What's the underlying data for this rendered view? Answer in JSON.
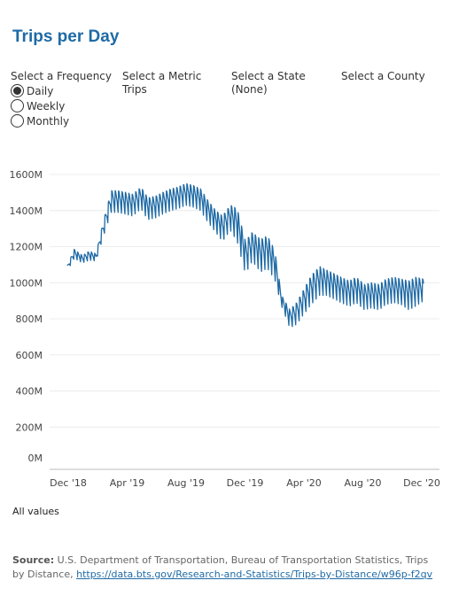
{
  "title": "Trips per Day",
  "filters": {
    "frequency": {
      "label": "Select a Frequency",
      "options": [
        "Daily",
        "Weekly",
        "Monthly"
      ],
      "selected": "Daily"
    },
    "metric": {
      "label": "Select a Metric",
      "value": "Trips"
    },
    "state": {
      "label": "Select a State",
      "value": "(None)"
    },
    "county": {
      "label": "Select a County",
      "value": ""
    }
  },
  "chart_data": {
    "type": "line",
    "title": "",
    "xlabel": "",
    "ylabel": "",
    "grid": true,
    "ylim": [
      0,
      1600
    ],
    "y_ticks": [
      "0M",
      "200M",
      "400M",
      "600M",
      "800M",
      "1000M",
      "1200M",
      "1400M",
      "1600M"
    ],
    "x_ticks": [
      "Dec '18",
      "Apr '19",
      "Aug '19",
      "Dec '19",
      "Apr '20",
      "Aug '20",
      "Dec '20"
    ],
    "x_range": [
      "2019-01-01",
      "2020-12-31"
    ],
    "color": "#1f6aa5",
    "series": [
      {
        "unit": "millions of trips",
        "x": [
          "2019-01-01",
          "2019-01-15",
          "2019-02-01",
          "2019-02-15",
          "2019-03-01",
          "2019-03-15",
          "2019-04-01",
          "2019-04-15",
          "2019-05-01",
          "2019-05-15",
          "2019-06-01",
          "2019-06-15",
          "2019-07-01",
          "2019-07-15",
          "2019-08-01",
          "2019-08-15",
          "2019-09-01",
          "2019-09-15",
          "2019-10-01",
          "2019-10-15",
          "2019-11-01",
          "2019-11-15",
          "2019-12-01",
          "2019-12-15",
          "2020-01-01",
          "2020-01-15",
          "2020-02-01",
          "2020-02-15",
          "2020-03-01",
          "2020-03-15",
          "2020-04-01",
          "2020-04-15",
          "2020-05-01",
          "2020-05-15",
          "2020-06-01",
          "2020-06-15",
          "2020-07-01",
          "2020-07-15",
          "2020-08-01",
          "2020-08-15",
          "2020-09-01",
          "2020-09-15",
          "2020-10-01",
          "2020-10-15",
          "2020-11-01",
          "2020-11-15",
          "2020-12-01",
          "2020-12-15",
          "2020-12-31"
        ],
        "y": [
          1080,
          1160,
          1130,
          1150,
          1140,
          1290,
          1450,
          1450,
          1440,
          1430,
          1470,
          1410,
          1420,
          1440,
          1460,
          1470,
          1490,
          1480,
          1460,
          1400,
          1340,
          1300,
          1360,
          1320,
          1140,
          1200,
          1150,
          1170,
          1100,
          900,
          800,
          830,
          900,
          960,
          1010,
          1000,
          980,
          960,
          940,
          960,
          920,
          930,
          920,
          950,
          960,
          950,
          930,
          950,
          960
        ],
        "spread": [
          15,
          25,
          20,
          25,
          20,
          40,
          60,
          60,
          60,
          60,
          60,
          60,
          60,
          60,
          60,
          60,
          60,
          60,
          60,
          60,
          60,
          70,
          70,
          90,
          90,
          80,
          90,
          90,
          80,
          30,
          50,
          60,
          70,
          80,
          80,
          70,
          70,
          70,
          70,
          70,
          70,
          70,
          70,
          70,
          70,
          70,
          80,
          80,
          60
        ]
      }
    ]
  },
  "footer": {
    "all_values": "All values",
    "source_label": "Source:",
    "source_text": "U.S. Department of Transportation, Bureau of Transportation Statistics, Trips by Distance,",
    "source_link": "https://data.bts.gov/Research-and-Statistics/Trips-by-Distance/w96p-f2qv"
  }
}
